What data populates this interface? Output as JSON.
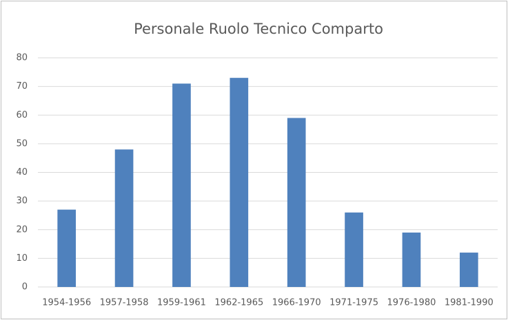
{
  "chart_data": {
    "type": "bar",
    "title": "Personale Ruolo Tecnico Comparto",
    "categories": [
      "1954-1956",
      "1957-1958",
      "1959-1961",
      "1962-1965",
      "1966-1970",
      "1971-1975",
      "1976-1980",
      "1981-1990"
    ],
    "values": [
      27,
      48,
      71,
      73,
      59,
      26,
      19,
      12
    ],
    "color": "#4f81bd",
    "ylim": [
      0,
      80
    ],
    "yticks": [
      0,
      10,
      20,
      30,
      40,
      50,
      60,
      70,
      80
    ],
    "grid": true
  }
}
